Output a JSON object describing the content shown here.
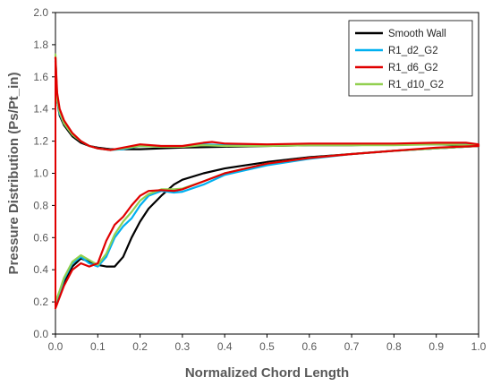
{
  "chart_data": {
    "type": "line",
    "title": "",
    "xlabel": "Normalized Chord Length",
    "ylabel": "Pressure Distribution (Ps/Pt_in)",
    "xlim": [
      0,
      1
    ],
    "ylim": [
      0,
      2
    ],
    "xticks": [
      "0.0",
      "0.1",
      "0.2",
      "0.3",
      "0.4",
      "0.5",
      "0.6",
      "0.7",
      "0.8",
      "0.9",
      "1.0"
    ],
    "yticks": [
      "0.0",
      "0.2",
      "0.4",
      "0.6",
      "0.8",
      "1.0",
      "1.2",
      "1.4",
      "1.6",
      "1.8",
      "2.0"
    ],
    "grid": false,
    "legend_position": "top-right",
    "series": [
      {
        "name": "Smooth Wall",
        "color": "#000000",
        "upper": [
          [
            0,
            1.72
          ],
          [
            0.004,
            1.45
          ],
          [
            0.01,
            1.36
          ],
          [
            0.02,
            1.3
          ],
          [
            0.04,
            1.23
          ],
          [
            0.06,
            1.19
          ],
          [
            0.08,
            1.17
          ],
          [
            0.1,
            1.16
          ],
          [
            0.13,
            1.15
          ],
          [
            0.16,
            1.15
          ],
          [
            0.2,
            1.15
          ],
          [
            0.25,
            1.155
          ],
          [
            0.3,
            1.16
          ],
          [
            0.4,
            1.165
          ],
          [
            0.5,
            1.17
          ],
          [
            0.6,
            1.175
          ],
          [
            0.7,
            1.175
          ],
          [
            0.8,
            1.18
          ],
          [
            0.9,
            1.18
          ],
          [
            1.0,
            1.17
          ]
        ],
        "lower": [
          [
            0,
            0.2
          ],
          [
            0.01,
            0.25
          ],
          [
            0.02,
            0.32
          ],
          [
            0.04,
            0.42
          ],
          [
            0.06,
            0.47
          ],
          [
            0.08,
            0.45
          ],
          [
            0.1,
            0.43
          ],
          [
            0.12,
            0.42
          ],
          [
            0.14,
            0.42
          ],
          [
            0.16,
            0.48
          ],
          [
            0.18,
            0.6
          ],
          [
            0.2,
            0.7
          ],
          [
            0.22,
            0.78
          ],
          [
            0.25,
            0.86
          ],
          [
            0.28,
            0.93
          ],
          [
            0.3,
            0.96
          ],
          [
            0.35,
            1.0
          ],
          [
            0.4,
            1.03
          ],
          [
            0.5,
            1.07
          ],
          [
            0.6,
            1.1
          ],
          [
            0.7,
            1.12
          ],
          [
            0.8,
            1.14
          ],
          [
            0.9,
            1.155
          ],
          [
            1.0,
            1.17
          ]
        ]
      },
      {
        "name": "R1_d2_G2",
        "color": "#00B0F0",
        "upper": [
          [
            0,
            1.7
          ],
          [
            0.004,
            1.45
          ],
          [
            0.01,
            1.37
          ],
          [
            0.02,
            1.31
          ],
          [
            0.04,
            1.24
          ],
          [
            0.06,
            1.2
          ],
          [
            0.08,
            1.17
          ],
          [
            0.1,
            1.155
          ],
          [
            0.13,
            1.145
          ],
          [
            0.16,
            1.15
          ],
          [
            0.2,
            1.17
          ],
          [
            0.25,
            1.165
          ],
          [
            0.3,
            1.165
          ],
          [
            0.35,
            1.18
          ],
          [
            0.4,
            1.175
          ],
          [
            0.5,
            1.175
          ],
          [
            0.6,
            1.18
          ],
          [
            0.7,
            1.18
          ],
          [
            0.8,
            1.18
          ],
          [
            0.9,
            1.185
          ],
          [
            1.0,
            1.18
          ]
        ],
        "lower": [
          [
            0,
            0.18
          ],
          [
            0.01,
            0.26
          ],
          [
            0.02,
            0.34
          ],
          [
            0.04,
            0.44
          ],
          [
            0.06,
            0.48
          ],
          [
            0.08,
            0.44
          ],
          [
            0.1,
            0.42
          ],
          [
            0.12,
            0.48
          ],
          [
            0.14,
            0.6
          ],
          [
            0.16,
            0.67
          ],
          [
            0.18,
            0.72
          ],
          [
            0.2,
            0.8
          ],
          [
            0.22,
            0.86
          ],
          [
            0.25,
            0.89
          ],
          [
            0.28,
            0.88
          ],
          [
            0.3,
            0.885
          ],
          [
            0.35,
            0.93
          ],
          [
            0.4,
            0.99
          ],
          [
            0.5,
            1.05
          ],
          [
            0.6,
            1.09
          ],
          [
            0.7,
            1.12
          ],
          [
            0.8,
            1.14
          ],
          [
            0.9,
            1.155
          ],
          [
            1.0,
            1.17
          ]
        ]
      },
      {
        "name": "R1_d6_G2",
        "color": "#E00000",
        "upper": [
          [
            0,
            1.72
          ],
          [
            0.004,
            1.5
          ],
          [
            0.01,
            1.4
          ],
          [
            0.02,
            1.33
          ],
          [
            0.04,
            1.25
          ],
          [
            0.06,
            1.2
          ],
          [
            0.08,
            1.17
          ],
          [
            0.1,
            1.155
          ],
          [
            0.13,
            1.145
          ],
          [
            0.16,
            1.16
          ],
          [
            0.2,
            1.18
          ],
          [
            0.25,
            1.17
          ],
          [
            0.3,
            1.17
          ],
          [
            0.35,
            1.19
          ],
          [
            0.37,
            1.195
          ],
          [
            0.4,
            1.185
          ],
          [
            0.5,
            1.18
          ],
          [
            0.6,
            1.185
          ],
          [
            0.7,
            1.185
          ],
          [
            0.8,
            1.185
          ],
          [
            0.9,
            1.19
          ],
          [
            0.97,
            1.19
          ],
          [
            1.0,
            1.18
          ]
        ],
        "lower": [
          [
            0,
            0.16
          ],
          [
            0.01,
            0.23
          ],
          [
            0.02,
            0.3
          ],
          [
            0.04,
            0.4
          ],
          [
            0.06,
            0.44
          ],
          [
            0.08,
            0.42
          ],
          [
            0.1,
            0.44
          ],
          [
            0.12,
            0.58
          ],
          [
            0.14,
            0.68
          ],
          [
            0.16,
            0.73
          ],
          [
            0.18,
            0.8
          ],
          [
            0.2,
            0.86
          ],
          [
            0.22,
            0.89
          ],
          [
            0.25,
            0.895
          ],
          [
            0.28,
            0.89
          ],
          [
            0.3,
            0.9
          ],
          [
            0.35,
            0.95
          ],
          [
            0.4,
            1.0
          ],
          [
            0.5,
            1.06
          ],
          [
            0.6,
            1.095
          ],
          [
            0.7,
            1.12
          ],
          [
            0.8,
            1.14
          ],
          [
            0.9,
            1.16
          ],
          [
            1.0,
            1.17
          ]
        ]
      },
      {
        "name": "R1_d10_G2",
        "color": "#92D050",
        "upper": [
          [
            0,
            1.74
          ],
          [
            0.004,
            1.46
          ],
          [
            0.01,
            1.38
          ],
          [
            0.02,
            1.31
          ],
          [
            0.04,
            1.24
          ],
          [
            0.06,
            1.2
          ],
          [
            0.08,
            1.17
          ],
          [
            0.1,
            1.155
          ],
          [
            0.13,
            1.145
          ],
          [
            0.16,
            1.155
          ],
          [
            0.2,
            1.17
          ],
          [
            0.25,
            1.165
          ],
          [
            0.3,
            1.165
          ],
          [
            0.35,
            1.175
          ],
          [
            0.4,
            1.17
          ],
          [
            0.5,
            1.17
          ],
          [
            0.6,
            1.175
          ],
          [
            0.7,
            1.175
          ],
          [
            0.8,
            1.175
          ],
          [
            0.9,
            1.18
          ],
          [
            1.0,
            1.175
          ]
        ],
        "lower": [
          [
            0,
            0.2
          ],
          [
            0.01,
            0.27
          ],
          [
            0.02,
            0.35
          ],
          [
            0.04,
            0.45
          ],
          [
            0.06,
            0.49
          ],
          [
            0.08,
            0.46
          ],
          [
            0.1,
            0.43
          ],
          [
            0.12,
            0.5
          ],
          [
            0.14,
            0.62
          ],
          [
            0.16,
            0.7
          ],
          [
            0.18,
            0.76
          ],
          [
            0.2,
            0.83
          ],
          [
            0.22,
            0.87
          ],
          [
            0.25,
            0.9
          ],
          [
            0.28,
            0.9
          ],
          [
            0.3,
            0.905
          ],
          [
            0.35,
            0.95
          ],
          [
            0.4,
            1.0
          ],
          [
            0.5,
            1.06
          ],
          [
            0.6,
            1.095
          ],
          [
            0.7,
            1.12
          ],
          [
            0.8,
            1.14
          ],
          [
            0.9,
            1.155
          ],
          [
            1.0,
            1.17
          ]
        ]
      }
    ]
  }
}
